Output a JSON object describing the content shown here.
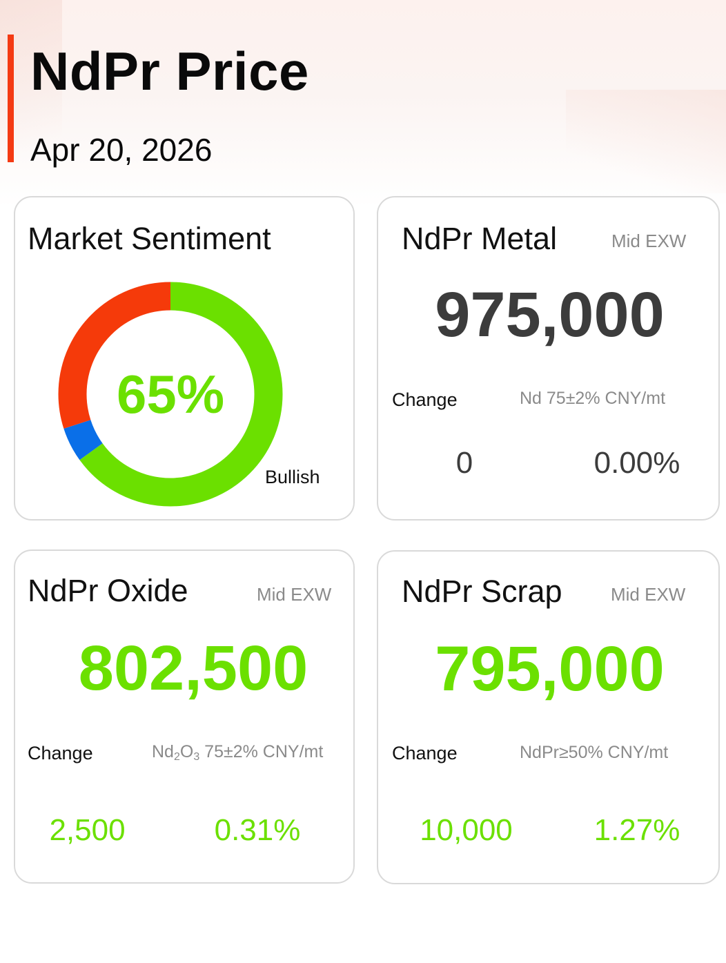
{
  "header": {
    "title": "NdPr Price",
    "date": "Apr 20, 2026"
  },
  "colors": {
    "accent": "#f43a13",
    "up": "#6be000",
    "neutral": "#3c3c3c",
    "bearish": "#f53a0a",
    "flat": "#0a6fe8",
    "muted": "#8a8a8a"
  },
  "sentiment": {
    "title": "Market Sentiment",
    "value_label": "65%",
    "label": "Bullish",
    "segments": [
      {
        "name": "bullish",
        "fraction": 0.65,
        "color": "#6be000"
      },
      {
        "name": "neutral",
        "fraction": 0.05,
        "color": "#0a6fe8"
      },
      {
        "name": "bearish",
        "fraction": 0.3,
        "color": "#f53a0a"
      }
    ]
  },
  "metal": {
    "title": "NdPr Metal",
    "tag": "Mid  EXW",
    "price": "975,000",
    "change_label": "Change",
    "unit": "Nd 75±2% CNY/mt",
    "change": "0",
    "change_pct": "0.00%",
    "trend": "flat"
  },
  "oxide": {
    "title": "NdPr Oxide",
    "tag": "Mid  EXW",
    "price": "802,500",
    "change_label": "Change",
    "unit_parts": {
      "a": "Nd",
      "sub1": "2",
      "b": "O",
      "sub2": "3",
      "rest": " 75±2% CNY/mt"
    },
    "change": "2,500",
    "change_pct": "0.31%",
    "trend": "up"
  },
  "scrap": {
    "title": "NdPr Scrap",
    "tag": "Mid  EXW",
    "price": "795,000",
    "change_label": "Change",
    "unit": "NdPr≥50% CNY/mt",
    "change": "10,000",
    "change_pct": "1.27%",
    "trend": "up"
  }
}
